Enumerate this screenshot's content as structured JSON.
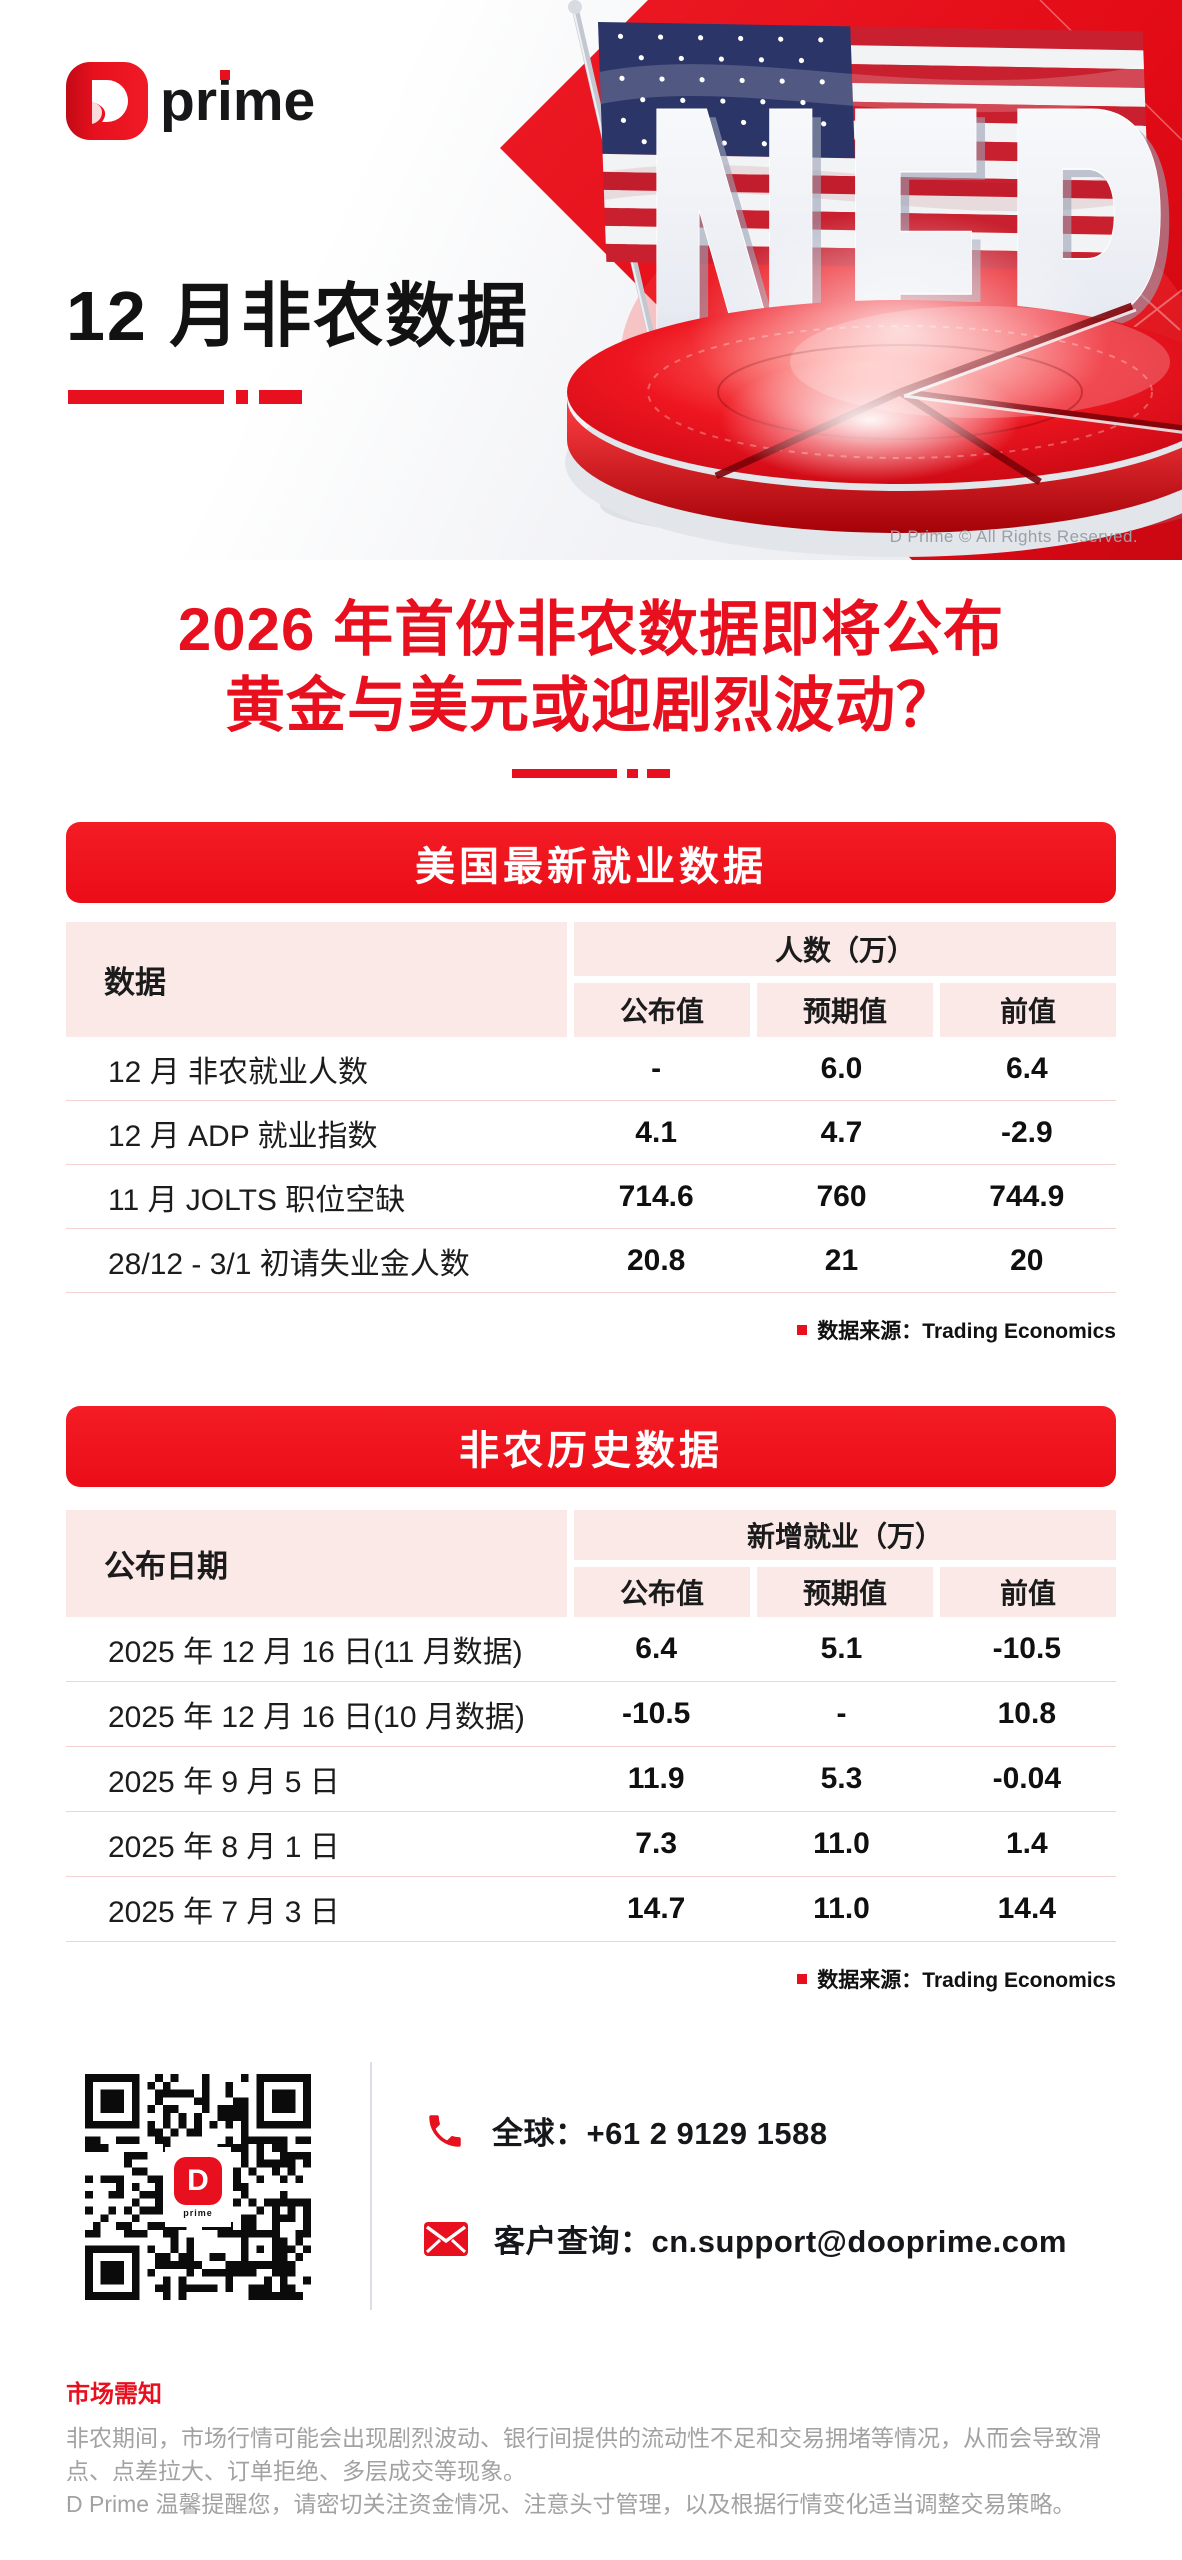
{
  "brand": {
    "logo_letter": "D",
    "logo_pre": "pr",
    "logo_i": "i",
    "logo_post": "me",
    "qr_caption": "prime",
    "red": "#e8101e"
  },
  "header": {
    "title": "12 月非农数据",
    "art_text": "NFP",
    "copyright": "D Prime © All Rights Reserved."
  },
  "headline": {
    "line1": "2026 年首份非农数据即将公布",
    "line2": "黄金与美元或迎剧烈波动？"
  },
  "tables": [
    {
      "banner": "美国最新就业数据",
      "row_header": "数据",
      "group_header": "人数（万）",
      "col_headers": [
        "公布值",
        "预期值",
        "前值"
      ],
      "rows": [
        {
          "label": "12 月 非农就业人数",
          "values": [
            "-",
            "6.0",
            "6.4"
          ]
        },
        {
          "label": "12 月 ADP 就业指数",
          "values": [
            "4.1",
            "4.7",
            "-2.9"
          ]
        },
        {
          "label": "11 月 JOLTS 职位空缺",
          "values": [
            "714.6",
            "760",
            "744.9"
          ]
        },
        {
          "label": "28/12 - 3/1 初请失业金人数",
          "values": [
            "20.8",
            "21",
            "20"
          ]
        }
      ],
      "source": "数据来源：Trading Economics"
    },
    {
      "banner": "非农历史数据",
      "row_header": "公布日期",
      "group_header": "新增就业（万）",
      "col_headers": [
        "公布值",
        "预期值",
        "前值"
      ],
      "rows": [
        {
          "label": "2025 年 12 月 16 日(11 月数据)",
          "values": [
            "6.4",
            "5.1",
            "-10.5"
          ]
        },
        {
          "label": "2025 年 12 月 16 日(10 月数据)",
          "values": [
            "-10.5",
            "-",
            "10.8"
          ]
        },
        {
          "label": "2025 年 9 月 5 日",
          "values": [
            "11.9",
            "5.3",
            "-0.04"
          ]
        },
        {
          "label": "2025 年 8 月 1 日",
          "values": [
            "7.3",
            "11.0",
            "1.4"
          ]
        },
        {
          "label": "2025 年 7 月 3 日",
          "values": [
            "14.7",
            "11.0",
            "14.4"
          ]
        }
      ],
      "source": "数据来源：Trading Economics"
    }
  ],
  "contact": {
    "phone_label": "全球：+61 2 9129 1588",
    "email_label": "客户查询：cn.support@dooprime.com"
  },
  "footer": {
    "title": "市场需知",
    "body1": "非农期间，市场行情可能会出现剧烈波动、银行间提供的流动性不足和交易拥堵等情况，从而会导致滑点、点差拉大、订单拒绝、多层成交等现象。",
    "body2": "D Prime 温馨提醒您，请密切关注资金情况、注意头寸管理，以及根据行情变化适当调整交易策略。"
  }
}
